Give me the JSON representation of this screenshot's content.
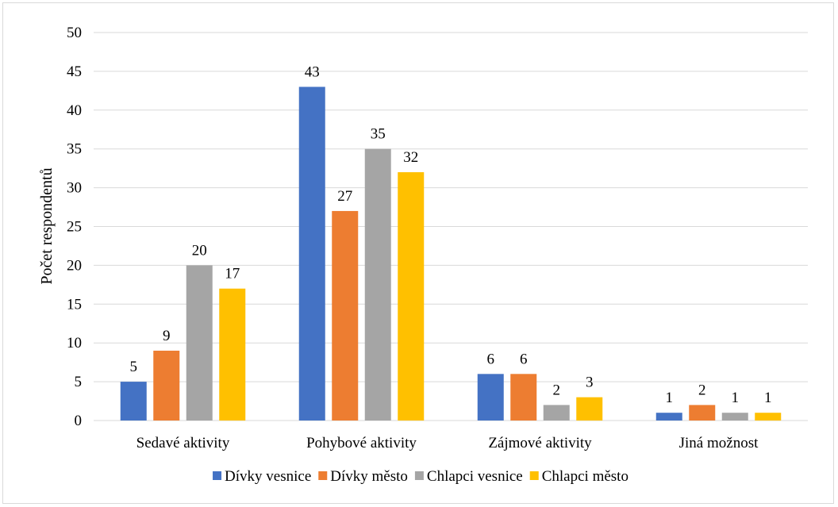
{
  "chart_data": {
    "type": "bar",
    "title": "",
    "xlabel": "",
    "ylabel": "Počet respondentů",
    "ylim": [
      0,
      50
    ],
    "yticks": [
      0,
      5,
      10,
      15,
      20,
      25,
      30,
      35,
      40,
      45,
      50
    ],
    "grid": true,
    "legend_position": "bottom",
    "categories": [
      "Sedavé aktivity",
      "Pohybové aktivity",
      "Zájmové aktivity",
      "Jiná možnost"
    ],
    "series": [
      {
        "name": "Dívky vesnice",
        "color": "#4472C4",
        "values": [
          5,
          43,
          6,
          1
        ]
      },
      {
        "name": "Dívky město",
        "color": "#ED7D31",
        "values": [
          9,
          27,
          6,
          2
        ]
      },
      {
        "name": "Chlapci vesnice",
        "color": "#A5A5A5",
        "values": [
          20,
          35,
          2,
          1
        ]
      },
      {
        "name": "Chlapci město",
        "color": "#FFC000",
        "values": [
          17,
          32,
          3,
          1
        ]
      }
    ]
  }
}
